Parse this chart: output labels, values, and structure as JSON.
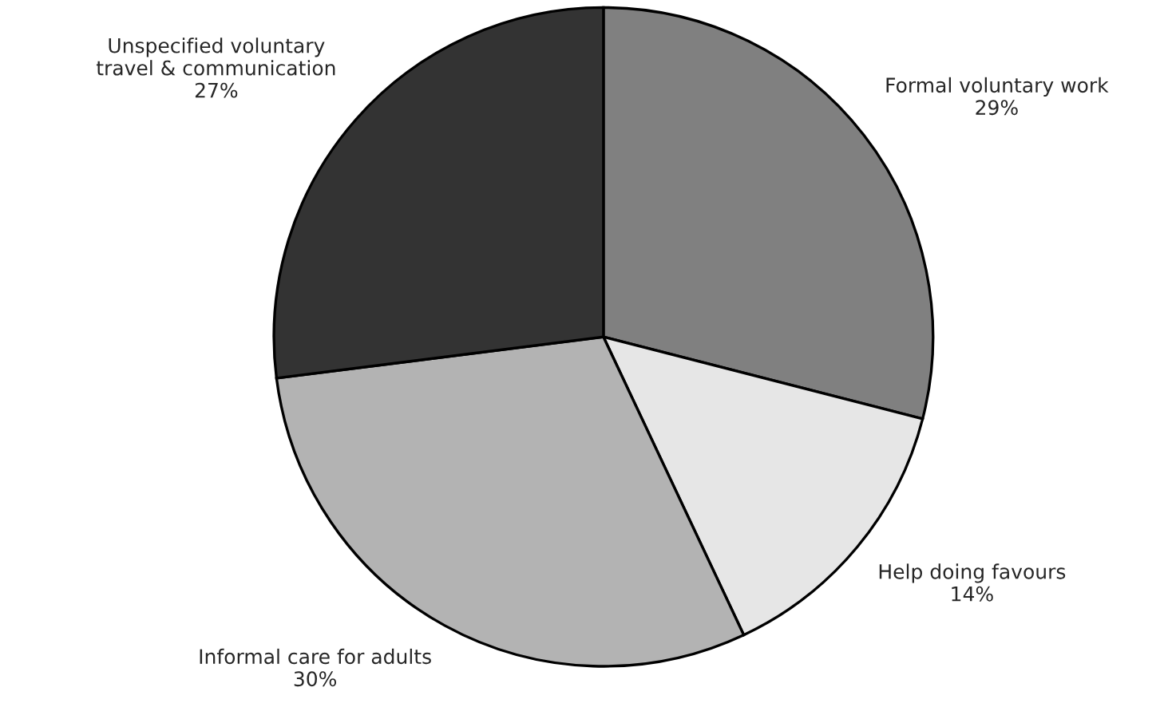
{
  "chart_data": {
    "type": "pie",
    "categories": [
      "Formal voluntary work",
      "Help doing favours",
      "Informal care for adults",
      "Unspecified voluntary\ntravel & communication"
    ],
    "values": [
      29,
      14,
      30,
      27
    ],
    "value_labels": [
      "29%",
      "14%",
      "30%",
      "27%"
    ],
    "colors": [
      "#808080",
      "#e6e6e6",
      "#b3b3b3",
      "#333333"
    ],
    "legend": false
  }
}
